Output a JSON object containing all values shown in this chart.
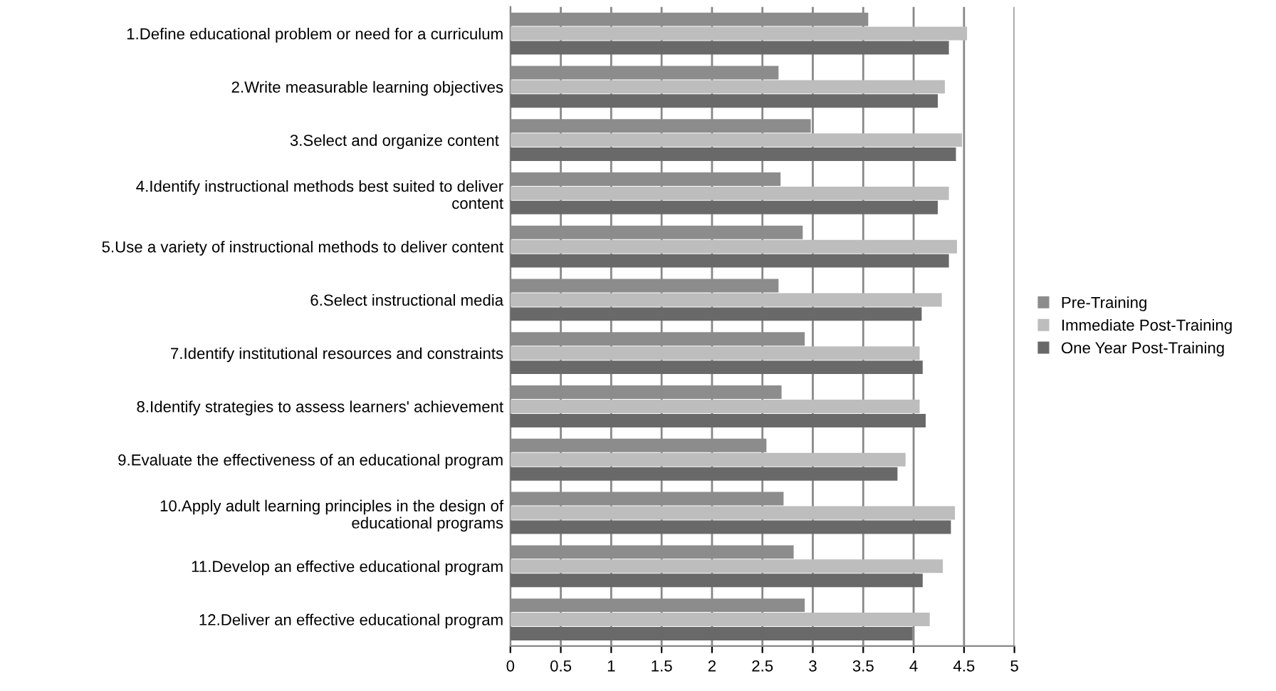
{
  "chart_data": {
    "type": "bar",
    "orientation": "horizontal",
    "categories": [
      "1.Define educational problem or need for a curriculum",
      "2.Write measurable learning objectives",
      "3.Select and organize content ",
      "4.Identify instructional methods best suited to deliver\ncontent",
      "5.Use a variety of instructional methods to deliver content",
      "6.Select instructional media",
      "7.Identify institutional resources and constraints",
      "8.Identify strategies to assess learners' achievement",
      "9.Evaluate the effectiveness of an educational program",
      "10.Apply adult learning principles in the design of\neducational programs",
      "11.Develop an effective educational program",
      "12.Deliver an effective educational program"
    ],
    "series": [
      {
        "name": "Pre-Training",
        "color": "#8c8c8c",
        "values": [
          3.55,
          2.66,
          2.98,
          2.68,
          2.9,
          2.66,
          2.92,
          2.69,
          2.54,
          2.71,
          2.81,
          2.92
        ]
      },
      {
        "name": "Immediate Post-Training",
        "color": "#bdbdbd",
        "values": [
          4.53,
          4.31,
          4.48,
          4.35,
          4.43,
          4.28,
          4.06,
          4.06,
          3.92,
          4.41,
          4.29,
          4.16
        ]
      },
      {
        "name": "One Year Post-Training",
        "color": "#696969",
        "values": [
          4.35,
          4.24,
          4.42,
          4.24,
          4.35,
          4.08,
          4.09,
          4.12,
          3.84,
          4.37,
          4.09,
          3.99
        ]
      }
    ],
    "xlim": [
      0,
      5
    ],
    "xticks": [
      0,
      0.5,
      1,
      1.5,
      2,
      2.5,
      3,
      3.5,
      4,
      4.5,
      5
    ],
    "grid": "x",
    "legend": "right"
  }
}
